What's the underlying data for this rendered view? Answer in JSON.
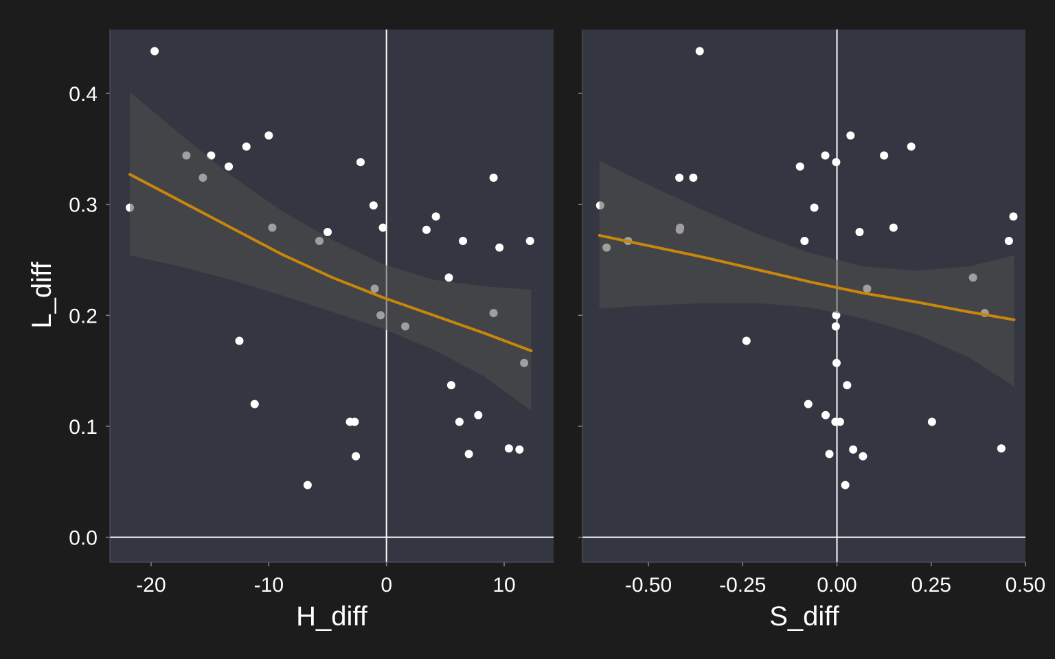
{
  "colors": {
    "background": "#1c1c1c",
    "panel": "#343741",
    "point": "#ffffff",
    "point_in_band": "#c8c8c8",
    "ref_line": "#ffffff",
    "fit_line": "#c8860b",
    "band": "#50504f"
  },
  "chart_data": [
    {
      "type": "scatter",
      "xlabel": "H_diff",
      "ylabel": "L_diff",
      "xlim": [
        -23.5,
        14.2
      ],
      "ylim": [
        -0.0225,
        0.4575
      ],
      "xticks": [
        -20,
        -10,
        0,
        10
      ],
      "xtick_labels": [
        "-20",
        "-10",
        "0",
        "10"
      ],
      "yticks": [
        0.0,
        0.1,
        0.2,
        0.3,
        0.4
      ],
      "ytick_labels": [
        "0.0",
        "0.1",
        "0.2",
        "0.3",
        "0.4"
      ],
      "reference_lines": {
        "x": 0,
        "y": 0
      },
      "points": [
        [
          -21.8,
          0.297
        ],
        [
          -19.7,
          0.438
        ],
        [
          -17.0,
          0.344
        ],
        [
          -14.9,
          0.344
        ],
        [
          -15.6,
          0.324
        ],
        [
          -13.4,
          0.334
        ],
        [
          -11.9,
          0.352
        ],
        [
          -10.0,
          0.362
        ],
        [
          -9.7,
          0.279
        ],
        [
          -12.5,
          0.177
        ],
        [
          -11.2,
          0.12
        ],
        [
          -6.7,
          0.047
        ],
        [
          -5.7,
          0.267
        ],
        [
          -5.0,
          0.275
        ],
        [
          -3.1,
          0.104
        ],
        [
          -2.7,
          0.104
        ],
        [
          -2.6,
          0.073
        ],
        [
          -2.2,
          0.338
        ],
        [
          -1.1,
          0.299
        ],
        [
          -1.0,
          0.224
        ],
        [
          -0.5,
          0.2
        ],
        [
          -0.3,
          0.279
        ],
        [
          1.6,
          0.19
        ],
        [
          3.4,
          0.277
        ],
        [
          4.2,
          0.289
        ],
        [
          5.3,
          0.234
        ],
        [
          5.5,
          0.137
        ],
        [
          6.2,
          0.104
        ],
        [
          6.5,
          0.267
        ],
        [
          7.0,
          0.075
        ],
        [
          7.8,
          0.11
        ],
        [
          9.1,
          0.324
        ],
        [
          9.1,
          0.202
        ],
        [
          9.6,
          0.261
        ],
        [
          10.4,
          0.08
        ],
        [
          11.3,
          0.079
        ],
        [
          11.7,
          0.157
        ],
        [
          12.2,
          0.267
        ]
      ],
      "fit": {
        "x": [
          -21.8,
          -17.5,
          -13.2,
          -8.9,
          -4.6,
          -0.3,
          4.0,
          8.3,
          12.3
        ],
        "y": [
          0.327,
          0.303,
          0.279,
          0.255,
          0.234,
          0.216,
          0.2,
          0.184,
          0.168
        ],
        "lower": [
          0.254,
          0.244,
          0.232,
          0.218,
          0.203,
          0.188,
          0.169,
          0.145,
          0.114
        ],
        "upper": [
          0.401,
          0.363,
          0.326,
          0.294,
          0.268,
          0.246,
          0.232,
          0.226,
          0.223
        ]
      }
    },
    {
      "type": "scatter",
      "xlabel": "S_diff",
      "ylabel": "",
      "xlim": [
        -0.675,
        0.5
      ],
      "ylim": [
        -0.0225,
        0.4575
      ],
      "xticks": [
        -0.5,
        -0.25,
        0.0,
        0.25,
        0.5
      ],
      "xtick_labels": [
        "-0.50",
        "-0.25",
        "0.00",
        "0.25",
        "0.50"
      ],
      "yticks": [
        0.0,
        0.1,
        0.2,
        0.3,
        0.4
      ],
      "ytick_labels": [],
      "reference_lines": {
        "x": 0,
        "y": 0
      },
      "points": [
        [
          -0.628,
          0.299
        ],
        [
          -0.611,
          0.261
        ],
        [
          -0.554,
          0.267
        ],
        [
          -0.418,
          0.324
        ],
        [
          -0.416,
          0.279
        ],
        [
          -0.417,
          0.277
        ],
        [
          -0.381,
          0.324
        ],
        [
          -0.364,
          0.438
        ],
        [
          -0.24,
          0.177
        ],
        [
          -0.098,
          0.334
        ],
        [
          -0.086,
          0.267
        ],
        [
          -0.076,
          0.12
        ],
        [
          -0.06,
          0.297
        ],
        [
          -0.031,
          0.344
        ],
        [
          -0.03,
          0.11
        ],
        [
          -0.02,
          0.075
        ],
        [
          -0.002,
          0.338
        ],
        [
          -0.002,
          0.2
        ],
        [
          -0.003,
          0.19
        ],
        [
          -0.001,
          0.157
        ],
        [
          -0.004,
          0.104
        ],
        [
          0.008,
          0.104
        ],
        [
          0.022,
          0.047
        ],
        [
          0.027,
          0.137
        ],
        [
          0.036,
          0.362
        ],
        [
          0.043,
          0.079
        ],
        [
          0.06,
          0.275
        ],
        [
          0.069,
          0.073
        ],
        [
          0.08,
          0.224
        ],
        [
          0.125,
          0.344
        ],
        [
          0.15,
          0.279
        ],
        [
          0.197,
          0.352
        ],
        [
          0.252,
          0.104
        ],
        [
          0.361,
          0.234
        ],
        [
          0.392,
          0.202
        ],
        [
          0.436,
          0.08
        ],
        [
          0.456,
          0.267
        ],
        [
          0.468,
          0.289
        ]
      ],
      "fit": {
        "x": [
          -0.63,
          -0.49,
          -0.35,
          -0.21,
          -0.07,
          0.07,
          0.21,
          0.35,
          0.47
        ],
        "y": [
          0.272,
          0.262,
          0.252,
          0.241,
          0.23,
          0.22,
          0.212,
          0.203,
          0.196
        ],
        "lower": [
          0.206,
          0.209,
          0.211,
          0.211,
          0.207,
          0.197,
          0.183,
          0.162,
          0.136
        ],
        "upper": [
          0.339,
          0.316,
          0.294,
          0.273,
          0.256,
          0.244,
          0.24,
          0.244,
          0.254
        ]
      }
    }
  ]
}
